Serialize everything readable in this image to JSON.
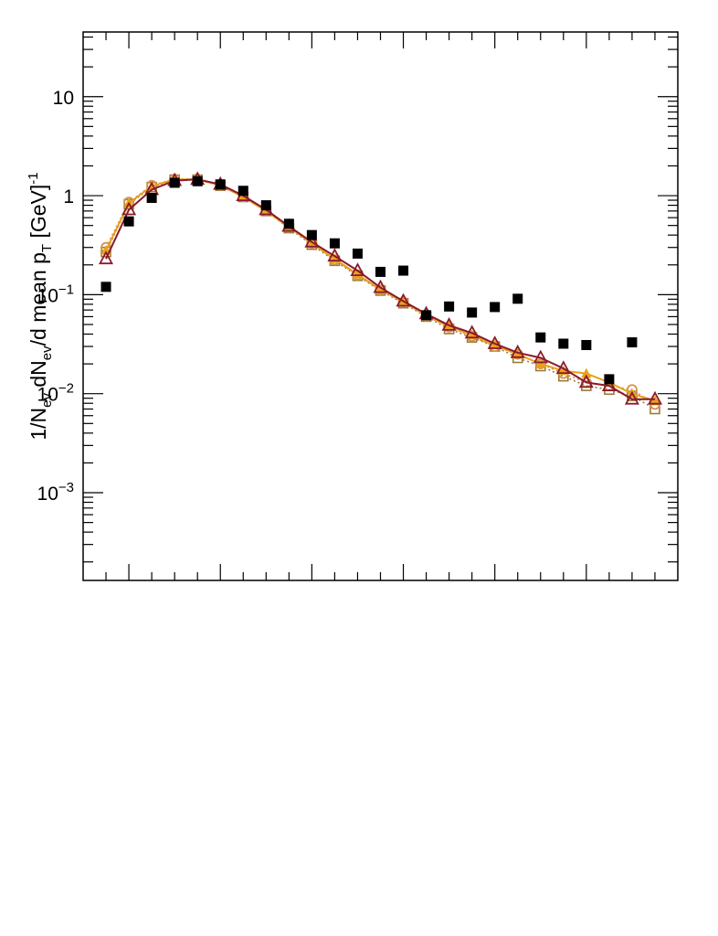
{
  "chart_data": {
    "type": "scatter",
    "title": "",
    "xlabel": "",
    "ylabel_parts": {
      "a": "1/N",
      "a_sub": "ev",
      "b": " dN",
      "b_sub": "ev",
      "c": "/d mean p",
      "c_sub": "T",
      "d": " [GeV]",
      "d_sup": "-1"
    },
    "yscale": "log",
    "xlim": [
      0,
      26
    ],
    "ylim": [
      0.00013,
      45
    ],
    "grid": false,
    "legend": "none",
    "y_ticks": [
      {
        "value": 10,
        "label": "10"
      },
      {
        "value": 1,
        "label": "1"
      },
      {
        "value": 0.1,
        "base": "10",
        "exp": "−1"
      },
      {
        "value": 0.01,
        "base": "10",
        "exp": "−2"
      },
      {
        "value": 0.001,
        "base": "10",
        "exp": "−3"
      }
    ],
    "x_major_ticks": [
      2,
      6,
      10,
      14,
      18,
      22
    ],
    "x": [
      1,
      2,
      3,
      4,
      5,
      6,
      7,
      8,
      9,
      10,
      11,
      12,
      13,
      14,
      15,
      16,
      17,
      18,
      19,
      20,
      21,
      22,
      23,
      24,
      25
    ],
    "series": [
      {
        "style": "square-filled",
        "color": "#000000",
        "line": "none",
        "x": [
          1,
          2,
          3,
          4,
          5,
          6,
          7,
          8,
          9,
          10,
          11,
          12,
          13,
          14,
          15,
          16,
          17,
          18,
          19,
          20,
          21,
          22,
          23,
          24
        ],
        "values": [
          0.12,
          0.55,
          0.95,
          1.35,
          1.4,
          1.3,
          1.12,
          0.8,
          0.52,
          0.4,
          0.33,
          0.26,
          0.17,
          0.175,
          0.062,
          0.076,
          0.066,
          0.075,
          0.091,
          0.037,
          0.032,
          0.031,
          0.014,
          0.033
        ]
      },
      {
        "style": "square-open",
        "color": "#9a7b3c",
        "line": "dotted",
        "values": [
          0.27,
          0.82,
          1.22,
          1.45,
          1.45,
          1.26,
          0.97,
          0.7,
          0.47,
          0.32,
          0.22,
          0.155,
          0.11,
          0.082,
          0.06,
          0.045,
          0.037,
          0.03,
          0.023,
          0.019,
          0.015,
          0.012,
          0.011,
          0.0095,
          0.007
        ]
      },
      {
        "style": "circle-open",
        "color": "#d6924a",
        "line": "dotted",
        "values": [
          0.3,
          0.86,
          1.27,
          1.47,
          1.47,
          1.28,
          0.98,
          0.71,
          0.48,
          0.33,
          0.225,
          0.158,
          0.112,
          0.084,
          0.061,
          0.047,
          0.038,
          0.03,
          0.025,
          0.02,
          0.016,
          0.013,
          0.012,
          0.011,
          0.0078
        ]
      },
      {
        "style": "triangle-filled",
        "color": "#e8a21a",
        "line": "solid",
        "values": [
          0.28,
          0.84,
          1.25,
          1.46,
          1.46,
          1.27,
          0.97,
          0.7,
          0.48,
          0.33,
          0.23,
          0.16,
          0.113,
          0.085,
          0.062,
          0.048,
          0.039,
          0.031,
          0.025,
          0.02,
          0.017,
          0.016,
          0.013,
          0.01,
          0.0085
        ]
      },
      {
        "style": "triangle-open",
        "color": "#8b1a2b",
        "line": "solid",
        "values": [
          0.23,
          0.72,
          1.15,
          1.42,
          1.46,
          1.3,
          1.0,
          0.72,
          0.49,
          0.34,
          0.245,
          0.175,
          0.118,
          0.086,
          0.064,
          0.049,
          0.041,
          0.032,
          0.026,
          0.023,
          0.018,
          0.013,
          0.012,
          0.0088,
          0.0088
        ]
      }
    ]
  }
}
